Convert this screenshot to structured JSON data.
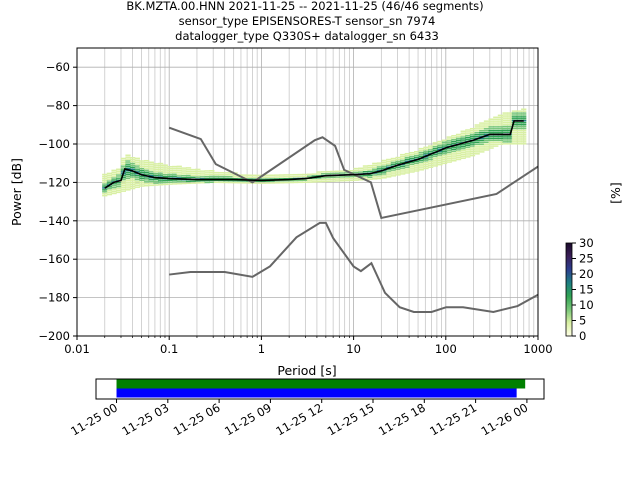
{
  "title_lines": [
    "BK.MZTA.00.HNN   2021-11-25 -- 2021-11-25  (46/46 segments)",
    "sensor_type EPISENSORES-T sensor_sn 7974",
    "datalogger_type Q330S+ datalogger_sn 6433"
  ],
  "chart_data": {
    "type": "line",
    "xlabel": "Period [s]",
    "ylabel": "Power [dB]",
    "xscale": "log",
    "xlim": [
      0.01,
      1000
    ],
    "ylim": [
      -200,
      -50
    ],
    "x_ticks": [
      0.01,
      0.1,
      1,
      10,
      100,
      1000
    ],
    "x_tick_labels": [
      "0.01",
      "0.1",
      "1",
      "10",
      "100",
      "1000"
    ],
    "y_ticks": [
      -200,
      -180,
      -160,
      -140,
      -120,
      -100,
      -80,
      -60
    ],
    "y_tick_labels": [
      "−200",
      "−180",
      "−160",
      "−140",
      "−120",
      "−100",
      "−80",
      "−60"
    ],
    "grid": true,
    "noise_models": {
      "high": [
        [
          0.1,
          -91.5
        ],
        [
          0.22,
          -97.4
        ],
        [
          0.32,
          -110.5
        ],
        [
          0.8,
          -120
        ],
        [
          3.8,
          -98
        ],
        [
          4.6,
          -96.5
        ],
        [
          6.3,
          -101
        ],
        [
          7.9,
          -113.5
        ],
        [
          15.4,
          -120
        ],
        [
          20,
          -138.5
        ],
        [
          354.8,
          -126
        ],
        [
          10000,
          -80.1
        ]
      ],
      "low": [
        [
          0.1,
          -168
        ],
        [
          0.17,
          -166.7
        ],
        [
          0.4,
          -166.7
        ],
        [
          0.8,
          -169.2
        ],
        [
          1.24,
          -163.7
        ],
        [
          2.4,
          -148.6
        ],
        [
          4.3,
          -141.1
        ],
        [
          5,
          -141.1
        ],
        [
          6,
          -149
        ],
        [
          10,
          -163.8
        ],
        [
          12,
          -166.2
        ],
        [
          15.6,
          -162.1
        ],
        [
          21.9,
          -177.5
        ],
        [
          31.6,
          -185
        ],
        [
          45,
          -187.5
        ],
        [
          70,
          -187.5
        ],
        [
          101,
          -185
        ],
        [
          154,
          -185
        ],
        [
          328,
          -187.5
        ],
        [
          600,
          -184.4
        ],
        [
          10000,
          -151.9
        ]
      ]
    },
    "mode_curve": [
      [
        0.02,
        -123
      ],
      [
        0.025,
        -120
      ],
      [
        0.03,
        -119
      ],
      [
        0.033,
        -113
      ],
      [
        0.04,
        -114
      ],
      [
        0.05,
        -116
      ],
      [
        0.07,
        -117.5
      ],
      [
        0.1,
        -118
      ],
      [
        0.2,
        -118.5
      ],
      [
        0.5,
        -118.5
      ],
      [
        1,
        -119
      ],
      [
        2,
        -118.5
      ],
      [
        3,
        -118
      ],
      [
        5,
        -116.5
      ],
      [
        10,
        -116
      ],
      [
        15,
        -115.5
      ],
      [
        20,
        -114
      ],
      [
        30,
        -111
      ],
      [
        50,
        -108
      ],
      [
        80,
        -104
      ],
      [
        100,
        -102
      ],
      [
        200,
        -98
      ],
      [
        300,
        -95
      ],
      [
        500,
        -95
      ],
      [
        550,
        -88
      ],
      [
        700,
        -88
      ]
    ],
    "pdf_band": {
      "upper": [
        [
          0.02,
          -116
        ],
        [
          0.03,
          -112
        ],
        [
          0.033,
          -105
        ],
        [
          0.05,
          -108
        ],
        [
          0.1,
          -111
        ],
        [
          0.2,
          -113
        ],
        [
          0.5,
          -115
        ],
        [
          1,
          -116.5
        ],
        [
          3,
          -116
        ],
        [
          5,
          -114
        ],
        [
          10,
          -113
        ],
        [
          20,
          -109
        ],
        [
          50,
          -103
        ],
        [
          100,
          -97
        ],
        [
          200,
          -91
        ],
        [
          400,
          -84
        ],
        [
          700,
          -82
        ]
      ],
      "lower": [
        [
          0.02,
          -127
        ],
        [
          0.03,
          -125
        ],
        [
          0.05,
          -122
        ],
        [
          0.1,
          -121
        ],
        [
          0.3,
          -120
        ],
        [
          1,
          -120.5
        ],
        [
          3,
          -120
        ],
        [
          10,
          -119
        ],
        [
          20,
          -118
        ],
        [
          50,
          -114
        ],
        [
          100,
          -110
        ],
        [
          200,
          -106
        ],
        [
          400,
          -100
        ],
        [
          700,
          -100
        ]
      ]
    },
    "colorbar": {
      "label": "[%]",
      "range": [
        0,
        30
      ],
      "ticks": [
        0,
        5,
        10,
        15,
        20,
        25,
        30
      ],
      "tick_labels": [
        "0",
        "5",
        "10",
        "15",
        "20",
        "25",
        "30"
      ],
      "colors": [
        "#ffffe5",
        "#d9f0a3",
        "#78c679",
        "#31a354",
        "#1d7f82",
        "#2c3e8f",
        "#3b1f58",
        "#1a0a2a"
      ]
    },
    "timeline": {
      "tick_labels": [
        "11-25 00",
        "11-25 03",
        "11-25 06",
        "11-25 09",
        "11-25 12",
        "11-25 15",
        "11-25 18",
        "11-25 21",
        "11-26 00"
      ],
      "bars": [
        {
          "color": "#008000",
          "start_hour": 0,
          "end_hour": 23.9
        },
        {
          "color": "#0000ff",
          "start_hour": 0,
          "end_hour": 23.4
        }
      ],
      "range_hours": [
        -1.2,
        25.0
      ]
    }
  }
}
